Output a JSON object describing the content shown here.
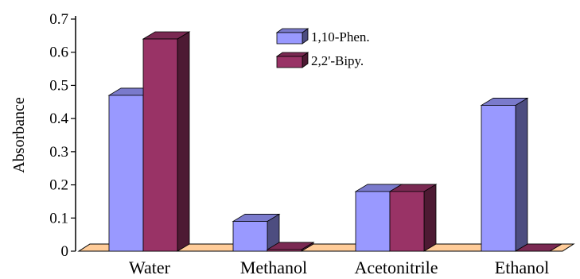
{
  "chart_data": {
    "type": "bar",
    "style": "3d",
    "categories": [
      "Water",
      "Methanol",
      "Acetonitrile",
      "Ethanol"
    ],
    "series": [
      {
        "name": "1,10-Phen.",
        "values": [
          0.47,
          0.09,
          0.18,
          0.44
        ],
        "color": "#9999ff"
      },
      {
        "name": "2,2'-Bipy.",
        "values": [
          0.64,
          0.005,
          0.18,
          0.0
        ],
        "color": "#993366"
      }
    ],
    "ylabel": "Absorbance",
    "xlabel": "",
    "title": "",
    "ylim": [
      0,
      0.7
    ],
    "yticks": [
      "0",
      "0.1",
      "0.2",
      "0.3",
      "0.4",
      "0.5",
      "0.6",
      "0.7"
    ],
    "grid": false,
    "legend": "top-center",
    "floor_color": "#ffcc99"
  }
}
